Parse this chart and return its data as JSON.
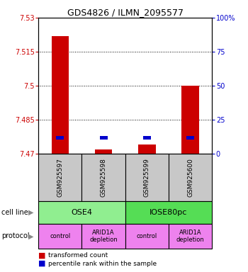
{
  "title": "GDS4826 / ILMN_2095577",
  "samples": [
    "GSM925597",
    "GSM925598",
    "GSM925599",
    "GSM925600"
  ],
  "red_values": [
    7.522,
    7.472,
    7.474,
    7.5
  ],
  "blue_values": [
    7.477,
    7.477,
    7.477,
    7.477
  ],
  "ylim": [
    7.47,
    7.53
  ],
  "yticks": [
    7.47,
    7.485,
    7.5,
    7.515,
    7.53
  ],
  "ytick_labels": [
    "7.47",
    "7.485",
    "7.5",
    "7.515",
    "7.53"
  ],
  "right_yticks": [
    0,
    25,
    50,
    75,
    100
  ],
  "right_ytick_labels": [
    "0",
    "25",
    "50",
    "75",
    "100%"
  ],
  "cell_line_colors": [
    "#90EE90",
    "#55DD55"
  ],
  "protocol_color": "#EE82EE",
  "sample_bg_color": "#C8C8C8",
  "bar_color_red": "#CC0000",
  "bar_color_blue": "#0000CC",
  "left_axis_color": "#CC0000",
  "right_axis_color": "#0000CC",
  "bar_width": 0.4,
  "blue_bar_width": 0.18,
  "blue_bar_height": 0.0015
}
